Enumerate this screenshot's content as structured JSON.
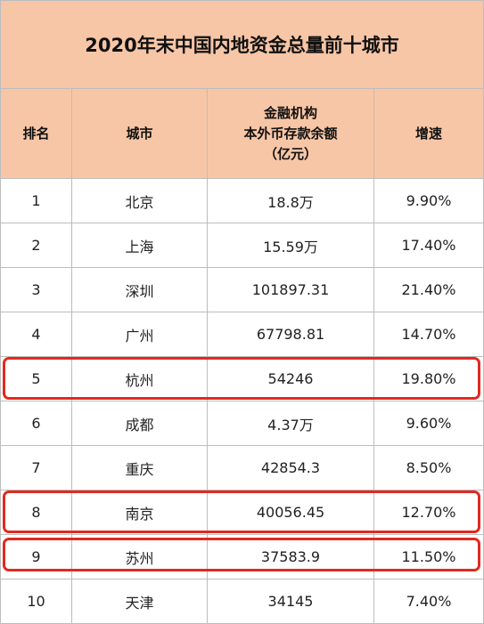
{
  "title": "2020年末中国内地资金总量前十城市",
  "headers": {
    "rank": "排名",
    "city": "城市",
    "deposit_line1": "金融机构",
    "deposit_line2": "本外币存款余额",
    "deposit_line3": "（亿元）",
    "growth": "增速"
  },
  "rows": [
    {
      "rank": "1",
      "city": "北京",
      "deposit": "18.8万",
      "growth": "9.90%"
    },
    {
      "rank": "2",
      "city": "上海",
      "deposit": "15.59万",
      "growth": "17.40%"
    },
    {
      "rank": "3",
      "city": "深圳",
      "deposit": "101897.31",
      "growth": "21.40%"
    },
    {
      "rank": "4",
      "city": "广州",
      "deposit": "67798.81",
      "growth": "14.70%"
    },
    {
      "rank": "5",
      "city": "杭州",
      "deposit": "54246",
      "growth": "19.80%"
    },
    {
      "rank": "6",
      "city": "成都",
      "deposit": "4.37万",
      "growth": "9.60%"
    },
    {
      "rank": "7",
      "city": "重庆",
      "deposit": "42854.3",
      "growth": "8.50%"
    },
    {
      "rank": "8",
      "city": "南京",
      "deposit": "40056.45",
      "growth": "12.70%"
    },
    {
      "rank": "9",
      "city": "苏州",
      "deposit": "37583.9",
      "growth": "11.50%"
    },
    {
      "rank": "10",
      "city": "天津",
      "deposit": "34145",
      "growth": "7.40%"
    }
  ],
  "highlighted_rows": [
    "杭州",
    "南京",
    "苏州"
  ],
  "colors": {
    "header_background": "#f7c6a6",
    "highlight_border": "#e02a20",
    "grid_line": "#bdbdbd"
  }
}
